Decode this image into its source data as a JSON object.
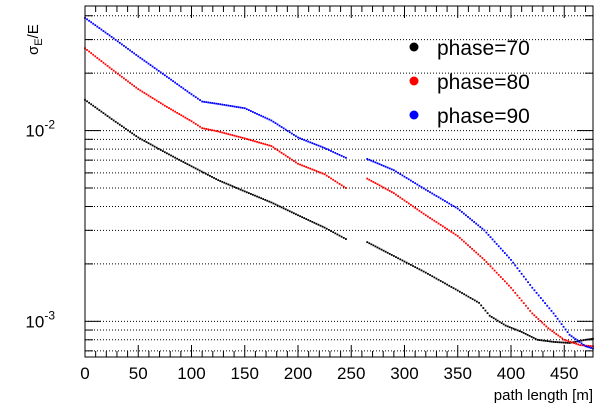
{
  "chart_data": {
    "type": "scatter",
    "xlabel": "path length [m]",
    "ylabel": {
      "main": "σ",
      "sub": "E",
      "rest": "/E"
    },
    "xlim": [
      0,
      477
    ],
    "ylim": [
      0.00065,
      0.045
    ],
    "yscale": "log",
    "grid": "horizontal dotted at y tick marks",
    "legend_position": "top-right",
    "x_ticks": [
      0,
      50,
      100,
      150,
      200,
      250,
      300,
      350,
      400,
      450
    ],
    "x_tick_labels": [
      "0",
      "50",
      "100",
      "150",
      "200",
      "250",
      "300",
      "350",
      "400",
      "450"
    ],
    "y_major_ticks": [
      {
        "value": 0.001,
        "base": "10",
        "exp": "-3"
      },
      {
        "value": 0.01,
        "base": "10",
        "exp": "-2"
      }
    ],
    "series": [
      {
        "name": "phase=70",
        "color": "#000000",
        "points": [
          [
            0,
            0.0145
          ],
          [
            25,
            0.0115
          ],
          [
            50,
            0.0092
          ],
          [
            75,
            0.0077
          ],
          [
            100,
            0.0065
          ],
          [
            125,
            0.0055
          ],
          [
            150,
            0.0048
          ],
          [
            175,
            0.0042
          ],
          [
            200,
            0.0036
          ],
          [
            225,
            0.0031
          ],
          [
            245,
            0.0027
          ],
          [
            265,
            0.0026
          ],
          [
            290,
            0.0022
          ],
          [
            320,
            0.0018
          ],
          [
            350,
            0.00145
          ],
          [
            370,
            0.00125
          ],
          [
            380,
            0.00107
          ],
          [
            395,
            0.00095
          ],
          [
            410,
            0.00088
          ],
          [
            425,
            0.0008
          ],
          [
            440,
            0.00078
          ],
          [
            455,
            0.00077
          ],
          [
            470,
            0.0008
          ],
          [
            477,
            0.00081
          ]
        ]
      },
      {
        "name": "phase=80",
        "color": "#ff0000",
        "points": [
          [
            0,
            0.027
          ],
          [
            25,
            0.021
          ],
          [
            50,
            0.0165
          ],
          [
            75,
            0.0135
          ],
          [
            100,
            0.0112
          ],
          [
            110,
            0.0103
          ],
          [
            125,
            0.0099
          ],
          [
            150,
            0.0091
          ],
          [
            175,
            0.0083
          ],
          [
            200,
            0.0067
          ],
          [
            225,
            0.0059
          ],
          [
            245,
            0.005
          ],
          [
            265,
            0.0056
          ],
          [
            290,
            0.0047
          ],
          [
            320,
            0.0036
          ],
          [
            350,
            0.0028
          ],
          [
            375,
            0.0021
          ],
          [
            400,
            0.0015
          ],
          [
            420,
            0.0011
          ],
          [
            435,
            0.00092
          ],
          [
            450,
            0.0008
          ],
          [
            465,
            0.00075
          ],
          [
            477,
            0.00074
          ]
        ]
      },
      {
        "name": "phase=90",
        "color": "#0000ff",
        "points": [
          [
            0,
            0.039
          ],
          [
            25,
            0.031
          ],
          [
            50,
            0.0245
          ],
          [
            75,
            0.0195
          ],
          [
            100,
            0.0155
          ],
          [
            110,
            0.0142
          ],
          [
            125,
            0.0138
          ],
          [
            150,
            0.0131
          ],
          [
            175,
            0.0113
          ],
          [
            200,
            0.0092
          ],
          [
            225,
            0.0081
          ],
          [
            245,
            0.0072
          ],
          [
            265,
            0.0071
          ],
          [
            290,
            0.0062
          ],
          [
            320,
            0.0049
          ],
          [
            350,
            0.0039
          ],
          [
            375,
            0.003
          ],
          [
            400,
            0.0021
          ],
          [
            420,
            0.0015
          ],
          [
            440,
            0.0011
          ],
          [
            455,
            0.00085
          ],
          [
            470,
            0.00074
          ],
          [
            477,
            0.00072
          ]
        ]
      }
    ]
  }
}
